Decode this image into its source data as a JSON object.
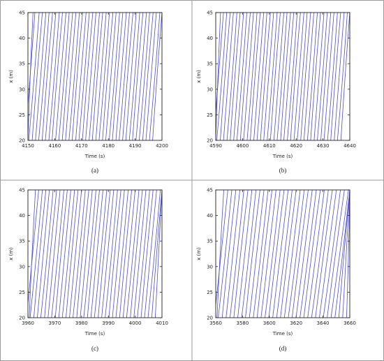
{
  "chart_data": [
    {
      "type": "line",
      "caption": "(a)",
      "xlabel": "Time (s)",
      "ylabel": "x (m)",
      "xlim": [
        4150,
        4200
      ],
      "ylim": [
        20,
        45
      ],
      "xticks": [
        4150,
        4160,
        4170,
        4180,
        4190,
        4200
      ],
      "yticks": [
        20,
        25,
        30,
        35,
        40,
        45
      ],
      "series_color": "#4b4bd6",
      "trajectory_count": 40,
      "series": [
        {
          "x": [
            4150.0,
            4151.9
          ]
        },
        {
          "x": [
            4149.0,
            4152.6
          ]
        },
        {
          "x": [
            4150.3,
            4154.2
          ]
        },
        {
          "x": [
            4151.6,
            4155.4
          ]
        },
        {
          "x": [
            4152.8,
            4156.7
          ]
        },
        {
          "x": [
            4154.0,
            4157.9
          ]
        },
        {
          "x": [
            4155.3,
            4159.2
          ]
        },
        {
          "x": [
            4156.5,
            4160.4
          ]
        },
        {
          "x": [
            4157.8,
            4161.7
          ]
        },
        {
          "x": [
            4159.0,
            4162.9
          ]
        },
        {
          "x": [
            4160.3,
            4164.2
          ]
        },
        {
          "x": [
            4161.5,
            4165.4
          ]
        },
        {
          "x": [
            4162.8,
            4166.7
          ]
        },
        {
          "x": [
            4164.0,
            4167.9
          ]
        },
        {
          "x": [
            4165.3,
            4169.2
          ]
        },
        {
          "x": [
            4166.5,
            4170.4
          ]
        },
        {
          "x": [
            4167.8,
            4171.7
          ]
        },
        {
          "x": [
            4169.0,
            4172.9
          ]
        },
        {
          "x": [
            4170.3,
            4174.2
          ]
        },
        {
          "x": [
            4171.5,
            4175.4
          ]
        },
        {
          "x": [
            4172.8,
            4176.7
          ]
        },
        {
          "x": [
            4174.0,
            4177.9
          ]
        },
        {
          "x": [
            4175.3,
            4179.2
          ]
        },
        {
          "x": [
            4176.5,
            4180.4
          ]
        },
        {
          "x": [
            4177.8,
            4181.7
          ]
        },
        {
          "x": [
            4179.0,
            4182.9
          ]
        },
        {
          "x": [
            4180.3,
            4184.2
          ]
        },
        {
          "x": [
            4181.5,
            4185.4
          ]
        },
        {
          "x": [
            4182.8,
            4186.7
          ]
        },
        {
          "x": [
            4184.0,
            4187.9
          ]
        },
        {
          "x": [
            4185.3,
            4189.2
          ]
        },
        {
          "x": [
            4186.5,
            4190.4
          ]
        },
        {
          "x": [
            4187.8,
            4191.7
          ]
        },
        {
          "x": [
            4189.0,
            4192.9
          ]
        },
        {
          "x": [
            4190.3,
            4194.2
          ]
        },
        {
          "x": [
            4191.5,
            4195.4
          ]
        },
        {
          "x": [
            4192.8,
            4196.7
          ]
        },
        {
          "x": [
            4194.0,
            4197.9
          ]
        },
        {
          "x": [
            4195.3,
            4199.2
          ]
        },
        {
          "x": [
            4196.5,
            4200.0
          ]
        }
      ]
    },
    {
      "type": "line",
      "caption": "(b)",
      "xlabel": "Time (s)",
      "ylabel": "x (m)",
      "xlim": [
        4590,
        4640
      ],
      "ylim": [
        20,
        45
      ],
      "xticks": [
        4590,
        4600,
        4610,
        4620,
        4630,
        4640
      ],
      "yticks": [
        20,
        25,
        30,
        35,
        40,
        45
      ],
      "series_color": "#4b4bd6",
      "trajectory_count": 40,
      "series": [
        {
          "x": [
            4590.0,
            4591.8
          ]
        },
        {
          "x": [
            4589.2,
            4592.9
          ]
        },
        {
          "x": [
            4590.4,
            4594.1
          ]
        },
        {
          "x": [
            4591.7,
            4595.4
          ]
        },
        {
          "x": [
            4592.9,
            4596.6
          ]
        },
        {
          "x": [
            4594.2,
            4597.9
          ]
        },
        {
          "x": [
            4595.4,
            4599.1
          ]
        },
        {
          "x": [
            4596.7,
            4600.4
          ]
        },
        {
          "x": [
            4597.9,
            4601.6
          ]
        },
        {
          "x": [
            4599.2,
            4602.9
          ]
        },
        {
          "x": [
            4600.4,
            4604.1
          ]
        },
        {
          "x": [
            4601.7,
            4605.4
          ]
        },
        {
          "x": [
            4602.9,
            4606.6
          ]
        },
        {
          "x": [
            4604.2,
            4607.9
          ]
        },
        {
          "x": [
            4605.4,
            4609.1
          ]
        },
        {
          "x": [
            4606.7,
            4610.4
          ]
        },
        {
          "x": [
            4607.9,
            4611.6
          ]
        },
        {
          "x": [
            4609.2,
            4612.9
          ]
        },
        {
          "x": [
            4610.4,
            4614.1
          ]
        },
        {
          "x": [
            4611.7,
            4615.4
          ]
        },
        {
          "x": [
            4612.9,
            4616.6
          ]
        },
        {
          "x": [
            4614.2,
            4617.9
          ]
        },
        {
          "x": [
            4615.4,
            4619.1
          ]
        },
        {
          "x": [
            4616.7,
            4620.4
          ]
        },
        {
          "x": [
            4617.9,
            4621.6
          ]
        },
        {
          "x": [
            4619.2,
            4622.9
          ]
        },
        {
          "x": [
            4620.4,
            4624.1
          ]
        },
        {
          "x": [
            4621.7,
            4625.4
          ]
        },
        {
          "x": [
            4622.9,
            4626.6
          ]
        },
        {
          "x": [
            4624.2,
            4627.9
          ]
        },
        {
          "x": [
            4625.4,
            4629.1
          ]
        },
        {
          "x": [
            4626.7,
            4630.4
          ]
        },
        {
          "x": [
            4627.9,
            4631.6
          ]
        },
        {
          "x": [
            4629.2,
            4632.9
          ]
        },
        {
          "x": [
            4630.4,
            4634.1
          ]
        },
        {
          "x": [
            4631.7,
            4635.4
          ]
        },
        {
          "x": [
            4632.9,
            4636.6
          ]
        },
        {
          "x": [
            4634.2,
            4637.9
          ]
        },
        {
          "x": [
            4635.4,
            4639.1
          ]
        },
        {
          "x": [
            4636.7,
            4640.0
          ]
        }
      ]
    },
    {
      "type": "line",
      "caption": "(c)",
      "xlabel": "Time (s)",
      "ylabel": "x (m)",
      "xlim": [
        3960,
        4010
      ],
      "ylim": [
        20,
        45
      ],
      "xticks": [
        3960,
        3970,
        3980,
        3990,
        4000,
        4010
      ],
      "yticks": [
        20,
        25,
        30,
        35,
        40,
        45
      ],
      "series_color": "#4b4bd6",
      "trajectory_count": 38,
      "series": [
        {
          "x": [
            3960.5,
            3962.8
          ]
        },
        {
          "x": [
            3959.5,
            3964.0
          ]
        },
        {
          "x": [
            3960.8,
            3965.4
          ]
        },
        {
          "x": [
            3962.2,
            3966.7
          ]
        },
        {
          "x": [
            3963.5,
            3968.0
          ]
        },
        {
          "x": [
            3964.8,
            3969.4
          ]
        },
        {
          "x": [
            3966.2,
            3970.7
          ]
        },
        {
          "x": [
            3967.5,
            3972.0
          ]
        },
        {
          "x": [
            3968.8,
            3973.4
          ]
        },
        {
          "x": [
            3970.2,
            3974.7
          ]
        },
        {
          "x": [
            3971.5,
            3976.0
          ]
        },
        {
          "x": [
            3972.8,
            3977.4
          ]
        },
        {
          "x": [
            3974.2,
            3978.7
          ]
        },
        {
          "x": [
            3975.5,
            3980.0
          ]
        },
        {
          "x": [
            3976.8,
            3981.4
          ]
        },
        {
          "x": [
            3978.2,
            3982.7
          ]
        },
        {
          "x": [
            3979.5,
            3984.0
          ]
        },
        {
          "x": [
            3980.8,
            3985.4
          ]
        },
        {
          "x": [
            3982.2,
            3986.7
          ]
        },
        {
          "x": [
            3983.5,
            3988.0
          ]
        },
        {
          "x": [
            3984.8,
            3989.4
          ]
        },
        {
          "x": [
            3986.2,
            3990.7
          ]
        },
        {
          "x": [
            3987.5,
            3992.0
          ]
        },
        {
          "x": [
            3988.8,
            3993.4
          ]
        },
        {
          "x": [
            3990.2,
            3994.7
          ]
        },
        {
          "x": [
            3991.5,
            3996.0
          ]
        },
        {
          "x": [
            3992.8,
            3997.4
          ]
        },
        {
          "x": [
            3994.2,
            3998.7
          ]
        },
        {
          "x": [
            3995.5,
            4000.0
          ]
        },
        {
          "x": [
            3996.8,
            4001.4
          ]
        },
        {
          "x": [
            3998.2,
            4002.7
          ]
        },
        {
          "x": [
            3999.5,
            4004.0
          ]
        },
        {
          "x": [
            4000.8,
            4005.4
          ]
        },
        {
          "x": [
            4002.2,
            4006.7
          ]
        },
        {
          "x": [
            4003.5,
            4008.0
          ]
        },
        {
          "x": [
            4004.8,
            4009.4
          ]
        },
        {
          "x": [
            4006.2,
            4010.0
          ]
        },
        {
          "x": [
            4007.5,
            4010.0
          ]
        }
      ]
    },
    {
      "type": "line",
      "caption": "(d)",
      "xlabel": "Time (s)",
      "ylabel": "x (m)",
      "xlim": [
        3560,
        3660
      ],
      "ylim": [
        20,
        45
      ],
      "xticks": [
        3560,
        3580,
        3600,
        3620,
        3640,
        3660
      ],
      "yticks": [
        20,
        25,
        30,
        35,
        40,
        45
      ],
      "series_color": "#4b4bd6",
      "trajectory_count": 36,
      "series": [
        {
          "x": [
            3561.0,
            3566.0
          ]
        },
        {
          "x": [
            3559.0,
            3569.0
          ]
        },
        {
          "x": [
            3561.9,
            3572.0
          ]
        },
        {
          "x": [
            3564.8,
            3575.0
          ]
        },
        {
          "x": [
            3567.7,
            3578.0
          ]
        },
        {
          "x": [
            3570.6,
            3581.0
          ]
        },
        {
          "x": [
            3573.5,
            3584.0
          ]
        },
        {
          "x": [
            3576.4,
            3587.0
          ]
        },
        {
          "x": [
            3579.3,
            3590.0
          ]
        },
        {
          "x": [
            3582.2,
            3593.0
          ]
        },
        {
          "x": [
            3585.1,
            3596.0
          ]
        },
        {
          "x": [
            3588.0,
            3599.0
          ]
        },
        {
          "x": [
            3590.9,
            3602.0
          ]
        },
        {
          "x": [
            3593.8,
            3605.0
          ]
        },
        {
          "x": [
            3596.7,
            3608.0
          ]
        },
        {
          "x": [
            3599.6,
            3611.0
          ]
        },
        {
          "x": [
            3602.5,
            3614.0
          ]
        },
        {
          "x": [
            3605.4,
            3617.0
          ]
        },
        {
          "x": [
            3608.3,
            3620.0
          ]
        },
        {
          "x": [
            3611.2,
            3623.0
          ]
        },
        {
          "x": [
            3614.1,
            3626.0
          ]
        },
        {
          "x": [
            3617.0,
            3629.0
          ]
        },
        {
          "x": [
            3619.9,
            3632.0
          ]
        },
        {
          "x": [
            3622.8,
            3635.0
          ]
        },
        {
          "x": [
            3625.7,
            3638.0
          ]
        },
        {
          "x": [
            3628.6,
            3641.0
          ]
        },
        {
          "x": [
            3631.5,
            3644.0
          ]
        },
        {
          "x": [
            3634.4,
            3647.0
          ]
        },
        {
          "x": [
            3637.3,
            3650.0
          ]
        },
        {
          "x": [
            3640.2,
            3653.0
          ]
        },
        {
          "x": [
            3643.1,
            3656.0
          ]
        },
        {
          "x": [
            3646.0,
            3659.0
          ]
        },
        {
          "x": [
            3648.9,
            3660.0
          ]
        },
        {
          "x": [
            3651.8,
            3660.0
          ]
        },
        {
          "x": [
            3654.7,
            3660.0
          ]
        },
        {
          "x": [
            3657.6,
            3660.0
          ]
        }
      ]
    }
  ]
}
